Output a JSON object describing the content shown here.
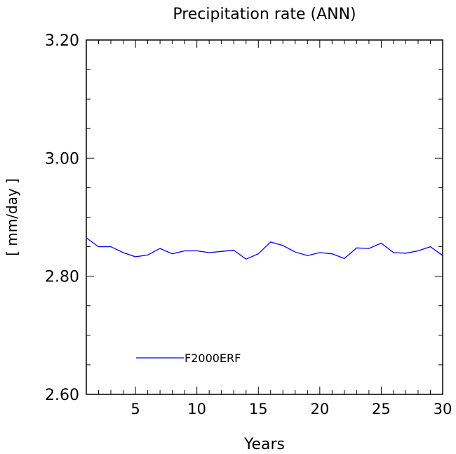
{
  "chart_data": {
    "type": "line",
    "title": "Precipitation rate (ANN)",
    "xlabel": "Years",
    "ylabel": "[ mm/day ]",
    "xlim": [
      1,
      30
    ],
    "ylim": [
      2.6,
      3.2
    ],
    "x_ticks": [
      5,
      10,
      15,
      20,
      25,
      30
    ],
    "x_tick_labels": [
      "5",
      "10",
      "15",
      "20",
      "25",
      "30"
    ],
    "y_ticks": [
      2.6,
      2.8,
      3.0,
      3.2
    ],
    "y_tick_labels": [
      "2.60",
      "2.80",
      "3.00",
      "3.20"
    ],
    "x_minor_step": 1,
    "y_minor_step": 0.05,
    "grid": false,
    "legend_position": "bottom-left",
    "series": [
      {
        "name": "F2000ERF",
        "color": "#0000ff",
        "x": [
          1,
          2,
          3,
          4,
          5,
          6,
          7,
          8,
          9,
          10,
          11,
          12,
          13,
          14,
          15,
          16,
          17,
          18,
          19,
          20,
          21,
          22,
          23,
          24,
          25,
          26,
          27,
          28,
          29,
          30
        ],
        "values": [
          2.865,
          2.85,
          2.85,
          2.84,
          2.833,
          2.836,
          2.847,
          2.838,
          2.843,
          2.843,
          2.84,
          2.842,
          2.844,
          2.829,
          2.838,
          2.858,
          2.852,
          2.841,
          2.835,
          2.84,
          2.838,
          2.83,
          2.848,
          2.847,
          2.856,
          2.84,
          2.839,
          2.843,
          2.85,
          2.835
        ]
      }
    ]
  }
}
